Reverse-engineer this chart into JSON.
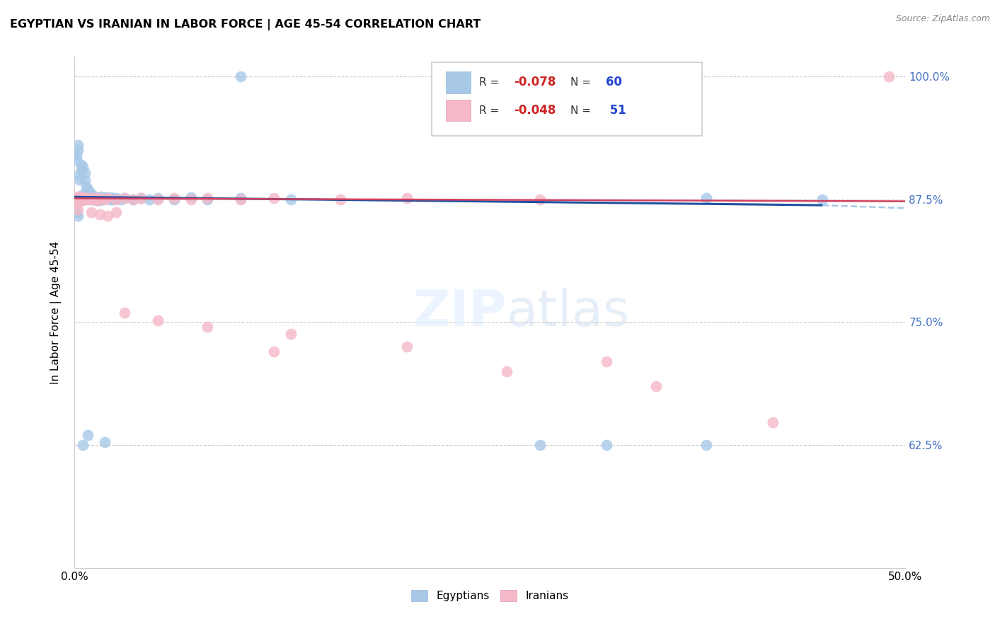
{
  "title": "EGYPTIAN VS IRANIAN IN LABOR FORCE | AGE 45-54 CORRELATION CHART",
  "source": "Source: ZipAtlas.com",
  "xlim": [
    0.0,
    0.5
  ],
  "ylim": [
    0.5,
    1.02
  ],
  "ylabel": "In Labor Force | Age 45-54",
  "legend_label1": "Egyptians",
  "legend_label2": "Iranians",
  "R1": -0.078,
  "N1": 60,
  "R2": -0.048,
  "N2": 51,
  "color_blue": "#a8c8e8",
  "color_pink": "#f5b8c8",
  "color_blue_line": "#2050a0",
  "color_pink_line": "#d04060",
  "color_blue_dashed": "#a0c0e0",
  "blue_points": [
    [
      0.001,
      0.92
    ],
    [
      0.001,
      0.915
    ],
    [
      0.002,
      0.925
    ],
    [
      0.002,
      0.93
    ],
    [
      0.003,
      0.895
    ],
    [
      0.003,
      0.9
    ],
    [
      0.004,
      0.905
    ],
    [
      0.004,
      0.91
    ],
    [
      0.005,
      0.908
    ],
    [
      0.005,
      0.88
    ],
    [
      0.006,
      0.895
    ],
    [
      0.006,
      0.902
    ],
    [
      0.007,
      0.888
    ],
    [
      0.007,
      0.878
    ],
    [
      0.008,
      0.885
    ],
    [
      0.008,
      0.88
    ],
    [
      0.009,
      0.876
    ],
    [
      0.009,
      0.882
    ],
    [
      0.01,
      0.878
    ],
    [
      0.01,
      0.875
    ],
    [
      0.011,
      0.876
    ],
    [
      0.011,
      0.879
    ],
    [
      0.012,
      0.877
    ],
    [
      0.012,
      0.875
    ],
    [
      0.013,
      0.876
    ],
    [
      0.013,
      0.874
    ],
    [
      0.014,
      0.876
    ],
    [
      0.015,
      0.874
    ],
    [
      0.016,
      0.878
    ],
    [
      0.017,
      0.875
    ],
    [
      0.018,
      0.876
    ],
    [
      0.019,
      0.877
    ],
    [
      0.02,
      0.876
    ],
    [
      0.021,
      0.875
    ],
    [
      0.022,
      0.877
    ],
    [
      0.023,
      0.875
    ],
    [
      0.025,
      0.876
    ],
    [
      0.028,
      0.875
    ],
    [
      0.03,
      0.876
    ],
    [
      0.035,
      0.875
    ],
    [
      0.04,
      0.876
    ],
    [
      0.045,
      0.875
    ],
    [
      0.05,
      0.876
    ],
    [
      0.06,
      0.875
    ],
    [
      0.07,
      0.877
    ],
    [
      0.08,
      0.875
    ],
    [
      0.1,
      0.876
    ],
    [
      0.13,
      0.875
    ],
    [
      0.38,
      0.876
    ],
    [
      0.45,
      0.875
    ],
    [
      0.1,
      1.0
    ],
    [
      0.32,
      1.0
    ],
    [
      0.005,
      0.625
    ],
    [
      0.008,
      0.635
    ],
    [
      0.018,
      0.628
    ],
    [
      0.28,
      0.625
    ],
    [
      0.32,
      0.625
    ],
    [
      0.38,
      0.625
    ],
    [
      0.001,
      0.862
    ],
    [
      0.002,
      0.858
    ]
  ],
  "pink_points": [
    [
      0.001,
      0.878
    ],
    [
      0.001,
      0.875
    ],
    [
      0.002,
      0.876
    ],
    [
      0.002,
      0.873
    ],
    [
      0.003,
      0.877
    ],
    [
      0.003,
      0.874
    ],
    [
      0.004,
      0.876
    ],
    [
      0.004,
      0.874
    ],
    [
      0.005,
      0.877
    ],
    [
      0.005,
      0.874
    ],
    [
      0.006,
      0.876
    ],
    [
      0.007,
      0.875
    ],
    [
      0.008,
      0.876
    ],
    [
      0.009,
      0.875
    ],
    [
      0.01,
      0.876
    ],
    [
      0.011,
      0.875
    ],
    [
      0.012,
      0.876
    ],
    [
      0.013,
      0.875
    ],
    [
      0.015,
      0.876
    ],
    [
      0.018,
      0.875
    ],
    [
      0.02,
      0.876
    ],
    [
      0.025,
      0.875
    ],
    [
      0.03,
      0.876
    ],
    [
      0.035,
      0.875
    ],
    [
      0.04,
      0.876
    ],
    [
      0.05,
      0.875
    ],
    [
      0.06,
      0.876
    ],
    [
      0.07,
      0.875
    ],
    [
      0.08,
      0.876
    ],
    [
      0.1,
      0.875
    ],
    [
      0.12,
      0.876
    ],
    [
      0.16,
      0.875
    ],
    [
      0.2,
      0.876
    ],
    [
      0.28,
      0.875
    ],
    [
      0.002,
      0.865
    ],
    [
      0.01,
      0.862
    ],
    [
      0.015,
      0.86
    ],
    [
      0.02,
      0.858
    ],
    [
      0.025,
      0.862
    ],
    [
      0.03,
      0.76
    ],
    [
      0.05,
      0.752
    ],
    [
      0.08,
      0.745
    ],
    [
      0.13,
      0.738
    ],
    [
      0.2,
      0.725
    ],
    [
      0.32,
      0.71
    ],
    [
      0.35,
      0.685
    ],
    [
      0.42,
      0.648
    ],
    [
      0.12,
      0.72
    ],
    [
      0.26,
      0.7
    ],
    [
      0.49,
      1.0
    ],
    [
      0.014,
      0.874
    ]
  ]
}
